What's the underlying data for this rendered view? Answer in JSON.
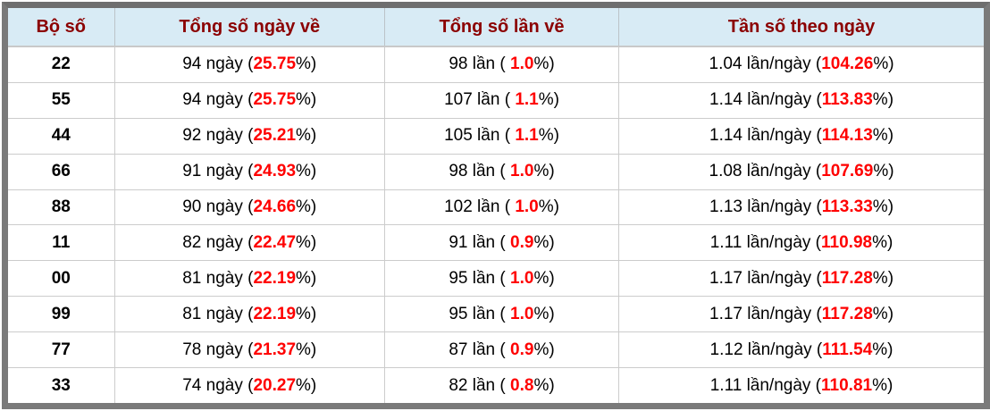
{
  "colors": {
    "frame": "#7a7a7a",
    "header_bg": "#d8ebf5",
    "header_text": "#8b0000",
    "value_red": "#ff0000",
    "body_text": "#000000",
    "grid_line": "#cccccc"
  },
  "table": {
    "headers": {
      "pair": "Bộ số",
      "days": "Tổng số ngày về",
      "times": "Tổng số lần về",
      "freq": "Tần số theo ngày"
    },
    "rows": [
      {
        "pair": "22",
        "days_prefix": "94 ngày (",
        "days_value": "25.75",
        "days_suffix": "%)",
        "times_prefix": "98 lần ( ",
        "times_value": "1.0",
        "times_suffix": "%)",
        "freq_prefix": "1.04 lần/ngày (",
        "freq_value": "104.26",
        "freq_suffix": "%)"
      },
      {
        "pair": "55",
        "days_prefix": "94 ngày (",
        "days_value": "25.75",
        "days_suffix": "%)",
        "times_prefix": "107 lần ( ",
        "times_value": "1.1",
        "times_suffix": "%)",
        "freq_prefix": "1.14 lần/ngày (",
        "freq_value": "113.83",
        "freq_suffix": "%)"
      },
      {
        "pair": "44",
        "days_prefix": "92 ngày (",
        "days_value": "25.21",
        "days_suffix": "%)",
        "times_prefix": "105 lần ( ",
        "times_value": "1.1",
        "times_suffix": "%)",
        "freq_prefix": "1.14 lần/ngày (",
        "freq_value": "114.13",
        "freq_suffix": "%)"
      },
      {
        "pair": "66",
        "days_prefix": "91 ngày (",
        "days_value": "24.93",
        "days_suffix": "%)",
        "times_prefix": "98 lần ( ",
        "times_value": "1.0",
        "times_suffix": "%)",
        "freq_prefix": "1.08 lần/ngày (",
        "freq_value": "107.69",
        "freq_suffix": "%)"
      },
      {
        "pair": "88",
        "days_prefix": "90 ngày (",
        "days_value": "24.66",
        "days_suffix": "%)",
        "times_prefix": "102 lần ( ",
        "times_value": "1.0",
        "times_suffix": "%)",
        "freq_prefix": "1.13 lần/ngày (",
        "freq_value": "113.33",
        "freq_suffix": "%)"
      },
      {
        "pair": "11",
        "days_prefix": "82 ngày (",
        "days_value": "22.47",
        "days_suffix": "%)",
        "times_prefix": "91 lần ( ",
        "times_value": "0.9",
        "times_suffix": "%)",
        "freq_prefix": "1.11 lần/ngày (",
        "freq_value": "110.98",
        "freq_suffix": "%)"
      },
      {
        "pair": "00",
        "days_prefix": "81 ngày (",
        "days_value": "22.19",
        "days_suffix": "%)",
        "times_prefix": "95 lần ( ",
        "times_value": "1.0",
        "times_suffix": "%)",
        "freq_prefix": "1.17 lần/ngày (",
        "freq_value": "117.28",
        "freq_suffix": "%)"
      },
      {
        "pair": "99",
        "days_prefix": "81 ngày (",
        "days_value": "22.19",
        "days_suffix": "%)",
        "times_prefix": "95 lần ( ",
        "times_value": "1.0",
        "times_suffix": "%)",
        "freq_prefix": "1.17 lần/ngày (",
        "freq_value": "117.28",
        "freq_suffix": "%)"
      },
      {
        "pair": "77",
        "days_prefix": "78 ngày (",
        "days_value": "21.37",
        "days_suffix": "%)",
        "times_prefix": "87 lần ( ",
        "times_value": "0.9",
        "times_suffix": "%)",
        "freq_prefix": "1.12 lần/ngày (",
        "freq_value": "111.54",
        "freq_suffix": "%)"
      },
      {
        "pair": "33",
        "days_prefix": "74 ngày (",
        "days_value": "20.27",
        "days_suffix": "%)",
        "times_prefix": "82 lần ( ",
        "times_value": "0.8",
        "times_suffix": "%)",
        "freq_prefix": "1.11 lần/ngày (",
        "freq_value": "110.81",
        "freq_suffix": "%)"
      }
    ]
  }
}
